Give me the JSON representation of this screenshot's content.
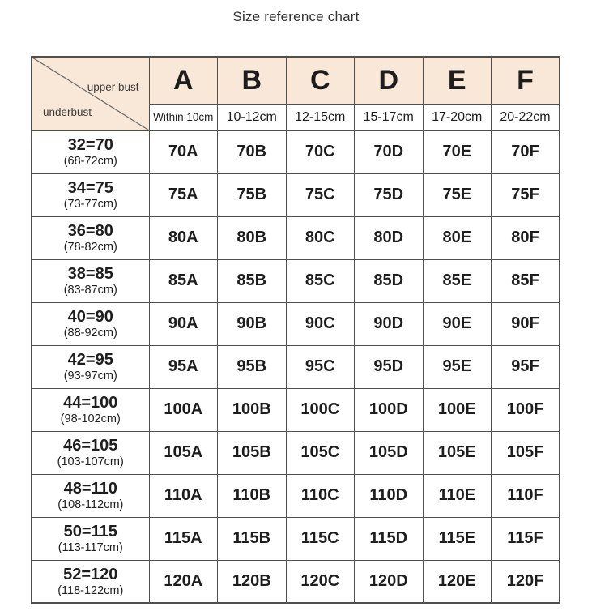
{
  "title": "Size reference chart",
  "colors": {
    "header_bg": "#f9e8d7",
    "border": "#4f4f4f",
    "text": "#1d1d1d",
    "title_text": "#333333",
    "diagonal_line": "#6e6e6e",
    "page_bg": "#ffffff"
  },
  "chart_data": {
    "type": "table",
    "title": "Size reference chart",
    "corner": {
      "top_right": "upper bust",
      "bottom_left": "underbust"
    },
    "columns": [
      {
        "letter": "A",
        "range": "Within 10cm"
      },
      {
        "letter": "B",
        "range": "10-12cm"
      },
      {
        "letter": "C",
        "range": "12-15cm"
      },
      {
        "letter": "D",
        "range": "15-17cm"
      },
      {
        "letter": "E",
        "range": "17-20cm"
      },
      {
        "letter": "F",
        "range": "20-22cm"
      }
    ],
    "rows": [
      {
        "size": "32=70",
        "range": "(68-72cm)",
        "cells": [
          "70A",
          "70B",
          "70C",
          "70D",
          "70E",
          "70F"
        ]
      },
      {
        "size": "34=75",
        "range": "(73-77cm)",
        "cells": [
          "75A",
          "75B",
          "75C",
          "75D",
          "75E",
          "75F"
        ]
      },
      {
        "size": "36=80",
        "range": "(78-82cm)",
        "cells": [
          "80A",
          "80B",
          "80C",
          "80D",
          "80E",
          "80F"
        ]
      },
      {
        "size": "38=85",
        "range": "(83-87cm)",
        "cells": [
          "85A",
          "85B",
          "85C",
          "85D",
          "85E",
          "85F"
        ]
      },
      {
        "size": "40=90",
        "range": "(88-92cm)",
        "cells": [
          "90A",
          "90B",
          "90C",
          "90D",
          "90E",
          "90F"
        ]
      },
      {
        "size": "42=95",
        "range": "(93-97cm)",
        "cells": [
          "95A",
          "95B",
          "95C",
          "95D",
          "95E",
          "95F"
        ]
      },
      {
        "size": "44=100",
        "range": "(98-102cm)",
        "cells": [
          "100A",
          "100B",
          "100C",
          "100D",
          "100E",
          "100F"
        ]
      },
      {
        "size": "46=105",
        "range": "(103-107cm)",
        "cells": [
          "105A",
          "105B",
          "105C",
          "105D",
          "105E",
          "105F"
        ]
      },
      {
        "size": "48=110",
        "range": "(108-112cm)",
        "cells": [
          "110A",
          "110B",
          "110C",
          "110D",
          "110E",
          "110F"
        ]
      },
      {
        "size": "50=115",
        "range": "(113-117cm)",
        "cells": [
          "115A",
          "115B",
          "115C",
          "115D",
          "115E",
          "115F"
        ]
      },
      {
        "size": "52=120",
        "range": "(118-122cm)",
        "cells": [
          "120A",
          "120B",
          "120C",
          "120D",
          "120E",
          "120F"
        ]
      }
    ]
  }
}
